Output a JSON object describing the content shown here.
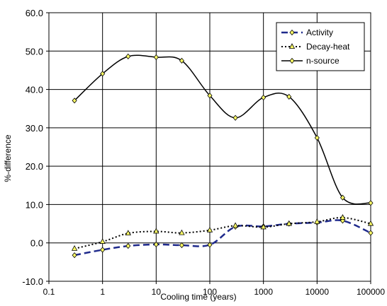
{
  "chart_data": {
    "type": "line",
    "title": "",
    "xlabel": "Cooling time (years)",
    "ylabel": "%-difference",
    "x_scale": "log",
    "xlim": [
      0.1,
      100000
    ],
    "ylim": [
      -10,
      60
    ],
    "x_ticks": [
      "0.1",
      "1",
      "10",
      "100",
      "1000",
      "10000",
      "100000"
    ],
    "y_ticks": [
      "-10.0",
      "0.0",
      "10.0",
      "20.0",
      "30.0",
      "40.0",
      "50.0",
      "60.0"
    ],
    "grid": true,
    "legend_position": "top-right",
    "x": [
      0.3,
      1,
      3,
      10,
      30,
      100,
      300,
      1000,
      3000,
      10000,
      30000,
      100000
    ],
    "series": [
      {
        "name": "Activity",
        "color": "#1f2a8c",
        "line_style": "dashed",
        "marker": "diamond",
        "values": [
          -3.2,
          -1.8,
          -0.8,
          -0.4,
          -0.6,
          -0.5,
          4.2,
          4.3,
          5.0,
          5.3,
          5.8,
          2.6
        ]
      },
      {
        "name": "Decay-heat",
        "color": "#000000",
        "line_style": "dotted",
        "marker": "triangle",
        "values": [
          -1.5,
          0.3,
          2.5,
          3.0,
          2.6,
          3.3,
          4.5,
          4.1,
          5.0,
          5.5,
          6.6,
          5.0
        ]
      },
      {
        "name": "n-source",
        "color": "#000000",
        "line_style": "solid",
        "marker": "diamond",
        "values": [
          37.1,
          44.1,
          48.6,
          48.4,
          47.5,
          38.4,
          32.6,
          37.9,
          38.1,
          27.4,
          11.8,
          10.4
        ]
      }
    ]
  }
}
